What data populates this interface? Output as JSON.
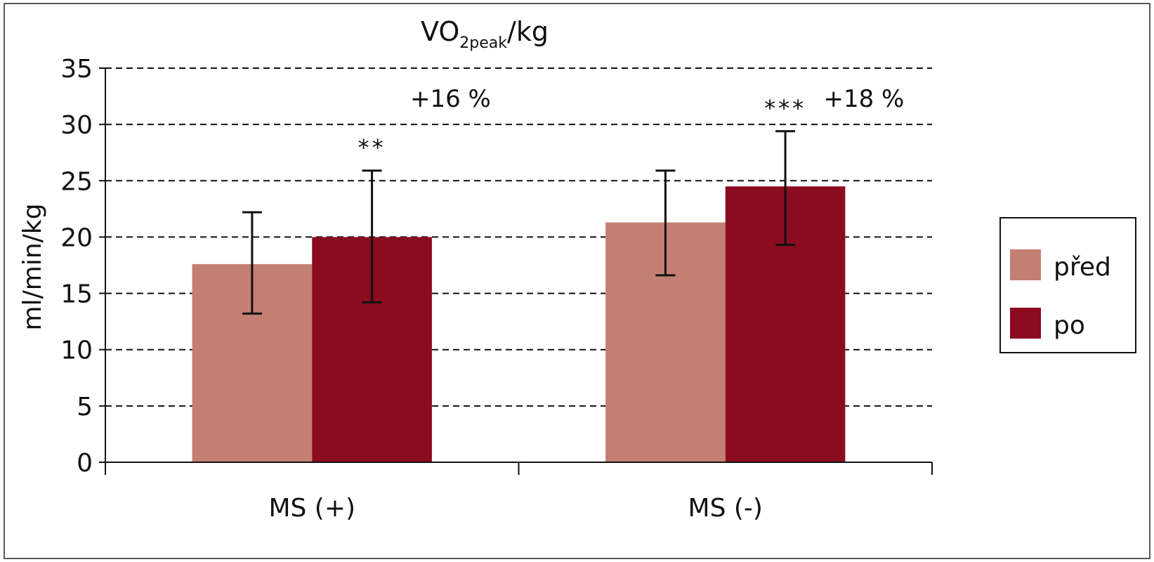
{
  "chart_data": {
    "type": "bar",
    "title_main": "VO",
    "title_sub": "2peak",
    "title_tail": "/kg",
    "xlabel": "",
    "ylabel": "ml/min/kg",
    "ylim": [
      0,
      35
    ],
    "yticks": [
      0,
      5,
      10,
      15,
      20,
      25,
      30,
      35
    ],
    "grid": true,
    "legend_position": "right",
    "categories": [
      "MS (+)",
      "MS  (-)"
    ],
    "series": [
      {
        "name": "před",
        "color": "#c47f73",
        "values": [
          17.6,
          21.3
        ],
        "error_low": [
          13.2,
          16.6
        ],
        "error_high": [
          22.2,
          25.9
        ]
      },
      {
        "name": "po",
        "color": "#8b0c1f",
        "values": [
          20.0,
          24.5
        ],
        "error_low": [
          14.2,
          19.3
        ],
        "error_high": [
          25.9,
          29.4
        ]
      }
    ],
    "annotations": {
      "significance": [
        "**",
        "***"
      ],
      "change": [
        "+16 %",
        "+18 %"
      ]
    }
  }
}
